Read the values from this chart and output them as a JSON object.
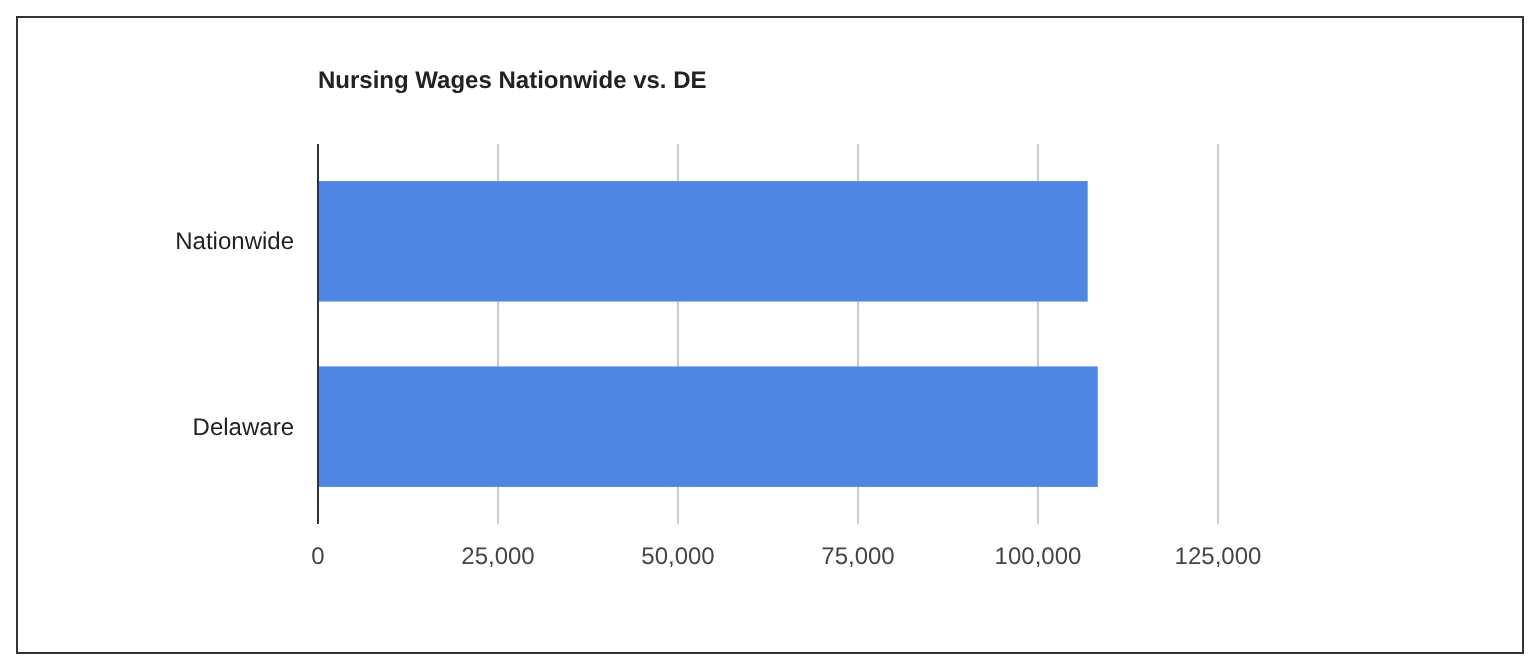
{
  "chart_data": {
    "type": "bar",
    "orientation": "horizontal",
    "title": "Nursing Wages Nationwide vs. DE",
    "categories": [
      "Nationwide",
      "Delaware"
    ],
    "values": [
      106900,
      108300
    ],
    "color": "#5086e3",
    "xlim": [
      0,
      125000
    ],
    "xticks": [
      0,
      {
        "value": 25000,
        "label": "25,000"
      },
      {
        "value": 50000,
        "label": "50,000"
      },
      {
        "value": 75000,
        "label": "75,000"
      },
      {
        "value": 100000,
        "label": "100,000"
      },
      {
        "value": 125000,
        "label": "125,000"
      }
    ],
    "grid": "x"
  }
}
